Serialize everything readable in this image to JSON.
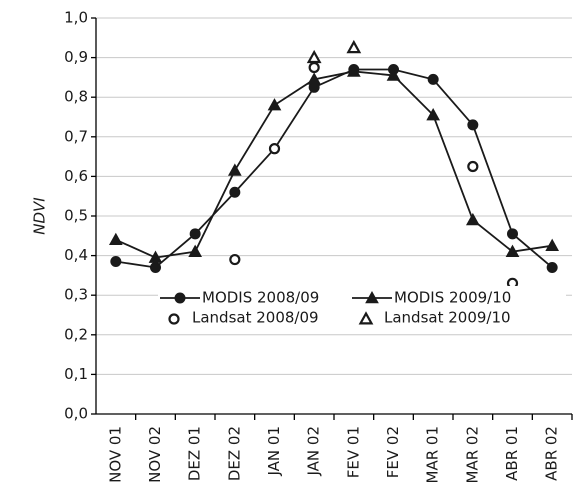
{
  "chart_data": {
    "type": "line",
    "y_label": "NDVI",
    "categories": [
      "NOV 01",
      "NOV 02",
      "DEZ 01",
      "DEZ 02",
      "JAN 01",
      "JAN 02",
      "FEV 01",
      "FEV 02",
      "MAR 01",
      "MAR 02",
      "ABR 01",
      "ABR 02"
    ],
    "series": [
      {
        "name": "MODIS 2008/09",
        "color": "#1a1a1a",
        "marker": "filled-circle",
        "line": true,
        "values": [
          0.385,
          0.37,
          0.455,
          0.56,
          0.67,
          0.825,
          0.87,
          0.87,
          0.845,
          0.73,
          0.455,
          0.37
        ]
      },
      {
        "name": "MODIS 2009/10",
        "color": "#1a1a1a",
        "marker": "filled-triangle",
        "line": true,
        "values": [
          0.44,
          0.395,
          0.41,
          0.615,
          0.78,
          0.845,
          0.865,
          0.855,
          0.755,
          0.49,
          0.41,
          0.425
        ]
      },
      {
        "name": "Landsat 2008/09",
        "color": "#1a1a1a",
        "marker": "open-circle",
        "line": false,
        "values": [
          null,
          null,
          null,
          0.39,
          0.67,
          0.875,
          null,
          null,
          null,
          0.625,
          0.33,
          null
        ]
      },
      {
        "name": "Landsat 2009/10",
        "color": "#1a1a1a",
        "marker": "open-triangle",
        "line": false,
        "values": [
          null,
          null,
          null,
          null,
          null,
          0.9,
          0.925,
          null,
          null,
          null,
          null,
          null
        ]
      }
    ],
    "ylim": [
      0,
      1
    ],
    "yticks": [
      {
        "value": 0,
        "label": "0,0"
      },
      {
        "value": 0.1,
        "label": "0,1"
      },
      {
        "value": 0.2,
        "label": "0,2"
      },
      {
        "value": 0.3,
        "label": "0,3"
      },
      {
        "value": 0.4,
        "label": "0,4"
      },
      {
        "value": 0.5,
        "label": "0,5"
      },
      {
        "value": 0.6,
        "label": "0,6"
      },
      {
        "value": 0.7,
        "label": "0,7"
      },
      {
        "value": 0.8,
        "label": "0,8"
      },
      {
        "value": 0.9,
        "label": "0,9"
      },
      {
        "value": 1,
        "label": "1,0"
      }
    ],
    "grid": true
  }
}
